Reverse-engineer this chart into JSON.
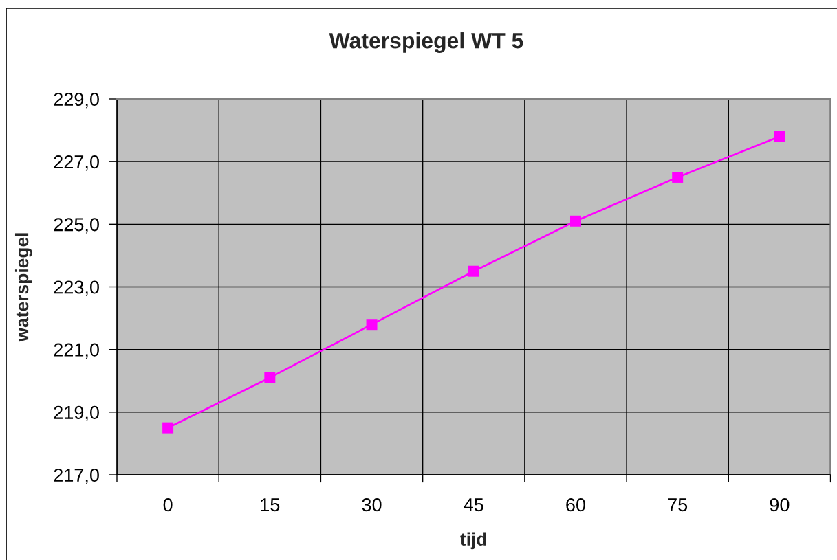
{
  "chart_data": {
    "type": "line",
    "title": "Waterspiegel WT 5",
    "xlabel": "tijd",
    "ylabel": "waterspiegel",
    "categories": [
      "0",
      "15",
      "30",
      "45",
      "60",
      "75",
      "90"
    ],
    "series": [
      {
        "color": "#ff00ff",
        "values": [
          218.5,
          220.1,
          221.8,
          223.5,
          225.1,
          226.5,
          227.8
        ]
      }
    ],
    "ylim": [
      217,
      229
    ],
    "yticks": [
      {
        "value": 217,
        "label": "217,0"
      },
      {
        "value": 219,
        "label": "219,0"
      },
      {
        "value": 221,
        "label": "221,0"
      },
      {
        "value": 223,
        "label": "223,0"
      },
      {
        "value": 225,
        "label": "225,0"
      },
      {
        "value": 227,
        "label": "227,0"
      },
      {
        "value": 229,
        "label": "229,0"
      }
    ],
    "grid": true,
    "marker": "square",
    "line_style": "solid"
  }
}
